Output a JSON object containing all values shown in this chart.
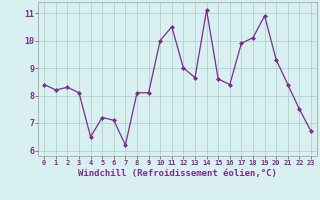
{
  "x": [
    0,
    1,
    2,
    3,
    4,
    5,
    6,
    7,
    8,
    9,
    10,
    11,
    12,
    13,
    14,
    15,
    16,
    17,
    18,
    19,
    20,
    21,
    22,
    23
  ],
  "y": [
    8.4,
    8.2,
    8.3,
    8.1,
    6.5,
    7.2,
    7.1,
    6.2,
    8.1,
    8.1,
    10.0,
    10.5,
    9.0,
    8.65,
    11.1,
    8.6,
    8.4,
    9.9,
    10.1,
    10.9,
    9.3,
    8.4,
    7.5,
    6.7
  ],
  "line_color": "#7b2d8b",
  "marker": "D",
  "marker_size": 2,
  "bg_color": "#d8f0f0",
  "grid_color": "#aacccc",
  "axis_label_color": "#7b2d8b",
  "tick_label_color": "#7b2d8b",
  "xlabel": "Windchill (Refroidissement éolien,°C)",
  "ylim": [
    5.8,
    11.4
  ],
  "xlim": [
    -0.5,
    23.5
  ],
  "yticks": [
    6,
    7,
    8,
    9,
    10,
    11
  ],
  "xticks": [
    0,
    1,
    2,
    3,
    4,
    5,
    6,
    7,
    8,
    9,
    10,
    11,
    12,
    13,
    14,
    15,
    16,
    17,
    18,
    19,
    20,
    21,
    22,
    23
  ],
  "tick_fontsize_x": 5.0,
  "tick_fontsize_y": 6.0,
  "xlabel_fontsize": 6.5
}
